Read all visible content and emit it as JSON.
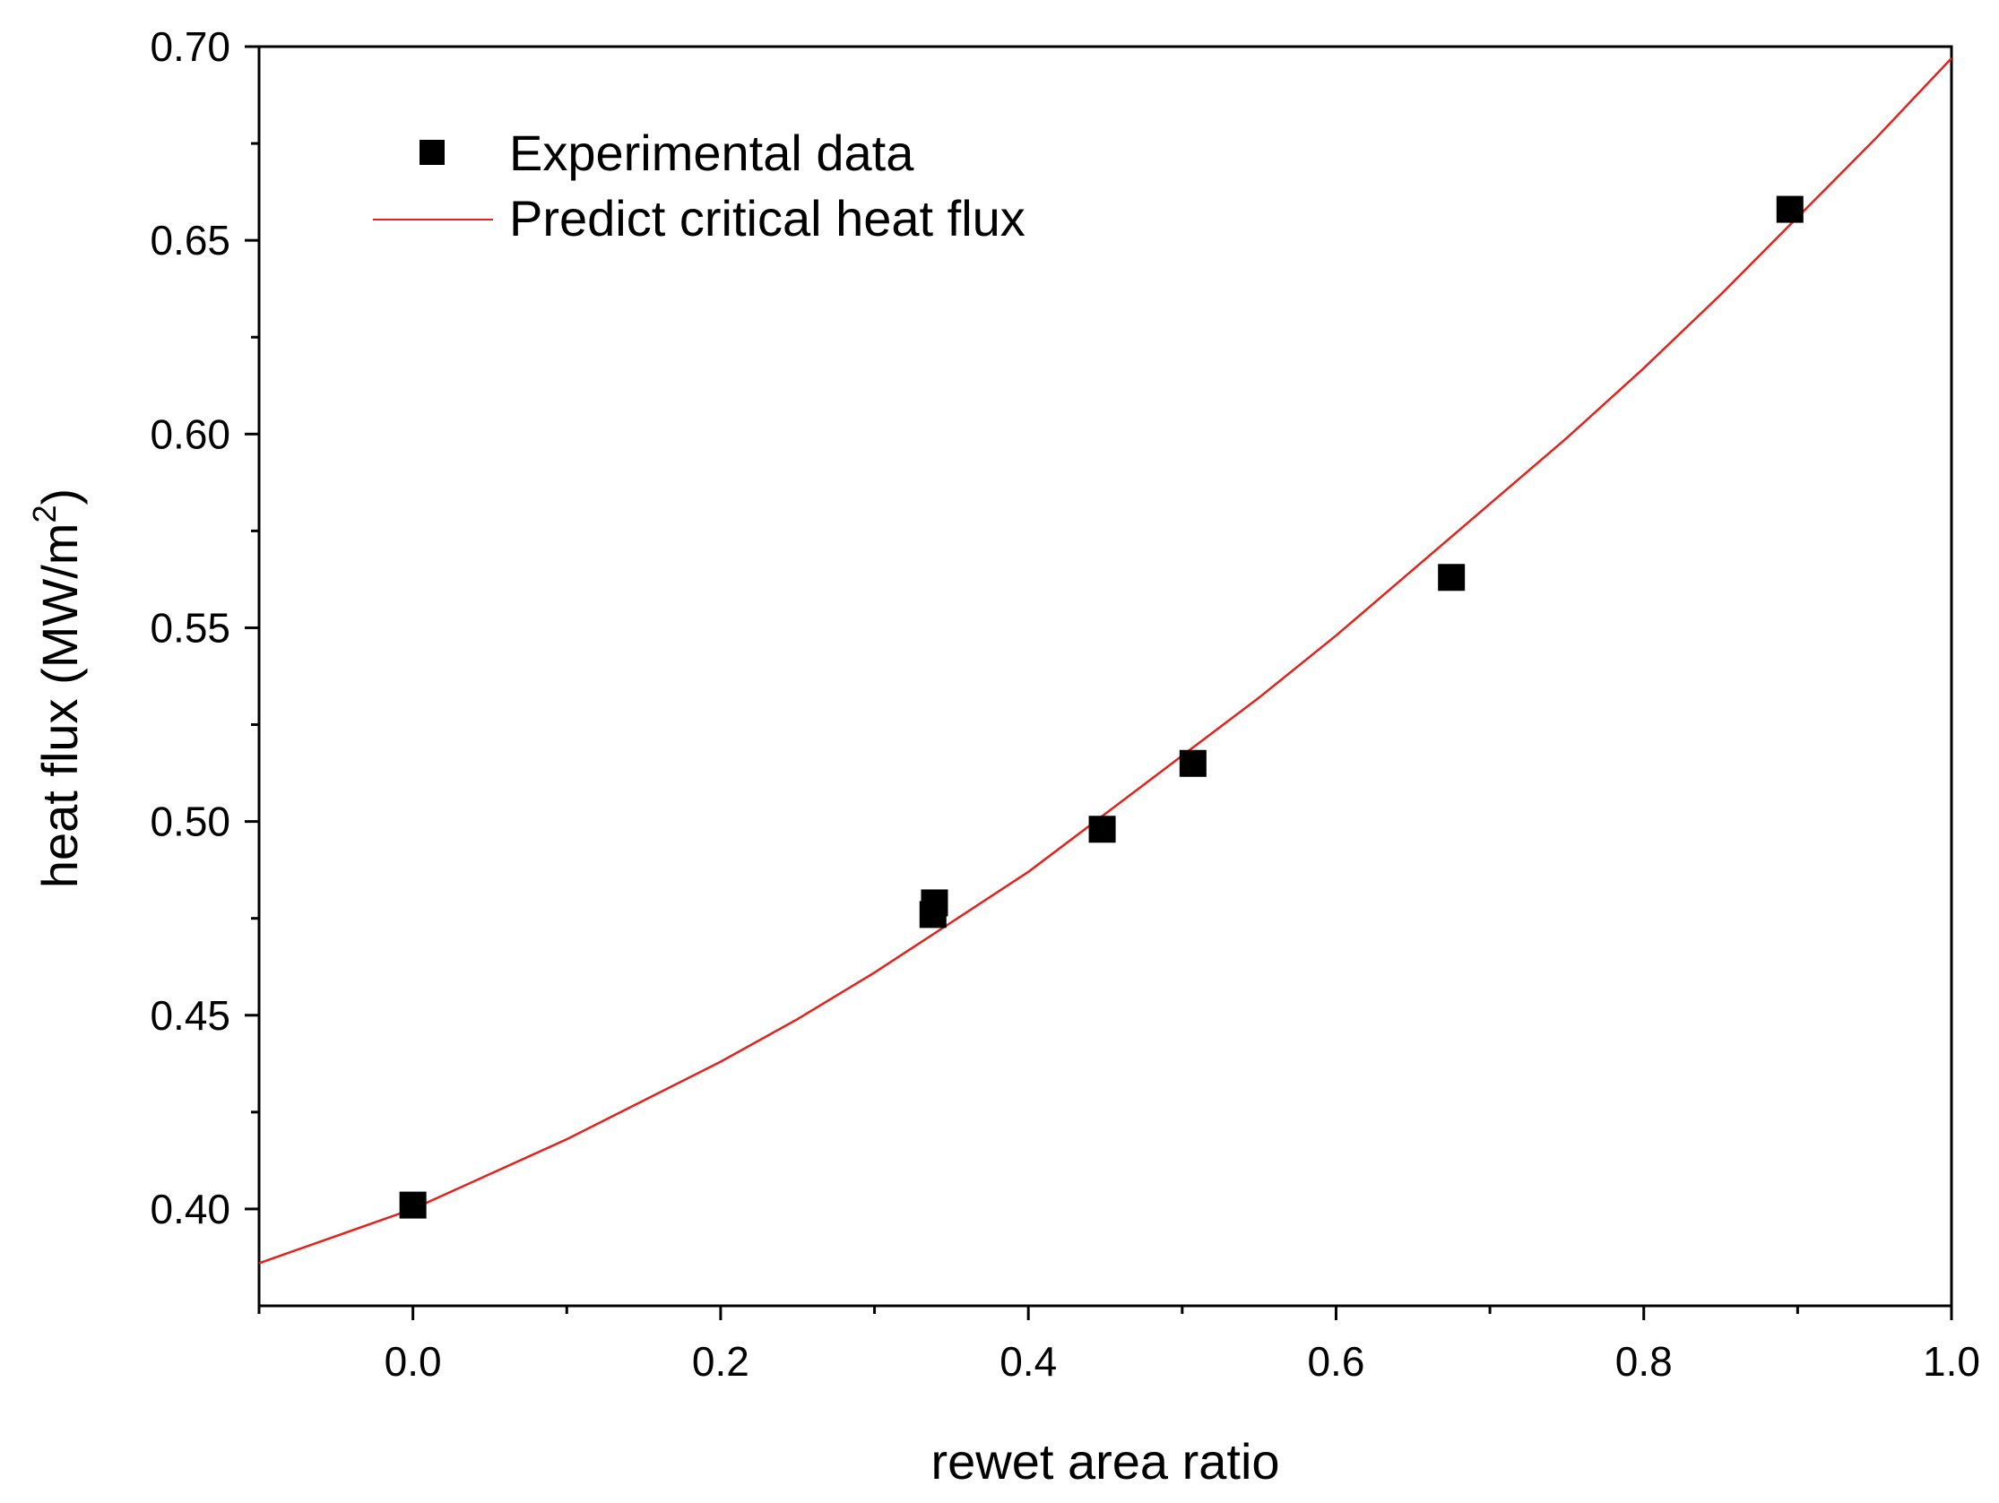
{
  "chart_data": {
    "type": "scatter",
    "title": "",
    "xlabel": "rewet area ratio",
    "ylabel": {
      "main": "heat flux (MW/m",
      "sup": "2",
      "close": ")"
    },
    "xlim": [
      -0.1,
      1.0
    ],
    "ylim": [
      0.375,
      0.7
    ],
    "x_ticks": [
      0.0,
      0.2,
      0.4,
      0.6,
      0.8,
      1.0
    ],
    "x_tick_labels": [
      "0.0",
      "0.2",
      "0.4",
      "0.6",
      "0.8",
      "1.0"
    ],
    "x_minor_ticks": [
      -0.1,
      0.1,
      0.3,
      0.5,
      0.7,
      0.9
    ],
    "y_ticks": [
      0.4,
      0.45,
      0.5,
      0.55,
      0.6,
      0.65,
      0.7
    ],
    "y_tick_labels": [
      "0.40",
      "0.45",
      "0.50",
      "0.55",
      "0.60",
      "0.65",
      "0.70"
    ],
    "y_minor_ticks": [
      0.425,
      0.475,
      0.525,
      0.575,
      0.625,
      0.675
    ],
    "grid": false,
    "legend_position": "top-left",
    "series": [
      {
        "name": "Experimental data",
        "kind": "scatter",
        "color": "#000000",
        "marker": "square",
        "x": [
          0.0,
          0.338,
          0.339,
          0.448,
          0.507,
          0.675,
          0.895
        ],
        "y": [
          0.401,
          0.476,
          0.479,
          0.498,
          0.515,
          0.563,
          0.658
        ]
      },
      {
        "name": "Predict critical heat flux",
        "kind": "line",
        "color": "#e8201a",
        "x": [
          -0.1,
          -0.05,
          0.0,
          0.05,
          0.1,
          0.15,
          0.2,
          0.25,
          0.3,
          0.35,
          0.4,
          0.45,
          0.5,
          0.55,
          0.6,
          0.65,
          0.7,
          0.75,
          0.8,
          0.85,
          0.9,
          0.95,
          1.0
        ],
        "y": [
          0.386,
          0.393,
          0.4,
          0.409,
          0.418,
          0.428,
          0.438,
          0.449,
          0.461,
          0.474,
          0.487,
          0.502,
          0.517,
          0.532,
          0.548,
          0.565,
          0.582,
          0.599,
          0.617,
          0.636,
          0.656,
          0.676,
          0.697
        ]
      }
    ]
  }
}
